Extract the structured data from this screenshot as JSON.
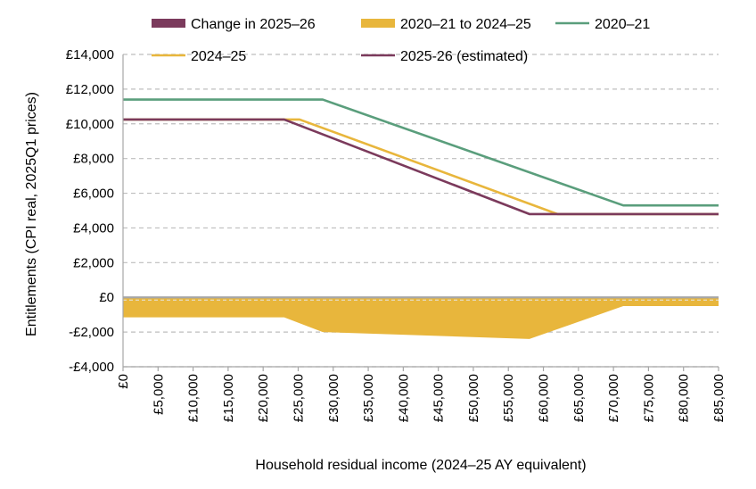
{
  "chart_data": {
    "type": "line",
    "title": "",
    "xlabel": "Household residual income (2024–25 AY equivalent)",
    "ylabel": "Entitlements (CPI real, 2025Q1 prices)",
    "xlim": [
      0,
      85000
    ],
    "ylim": [
      -4000,
      14000
    ],
    "x_ticks": [
      0,
      5000,
      10000,
      15000,
      20000,
      25000,
      30000,
      35000,
      40000,
      45000,
      50000,
      55000,
      60000,
      65000,
      70000,
      75000,
      80000,
      85000
    ],
    "x_tick_labels": [
      "£0",
      "£5,000",
      "£10,000",
      "£15,000",
      "£20,000",
      "£25,000",
      "£30,000",
      "£35,000",
      "£40,000",
      "£45,000",
      "£50,000",
      "£55,000",
      "£60,000",
      "£65,000",
      "£70,000",
      "£75,000",
      "£80,000",
      "£85,000"
    ],
    "y_ticks": [
      14000,
      12000,
      10000,
      8000,
      6000,
      4000,
      2000,
      0,
      -2000,
      -4000
    ],
    "y_tick_labels": [
      "£14,000",
      "£12,000",
      "£10,000",
      "£8,000",
      "£6,000",
      "£4,000",
      "£2,000",
      "£0",
      "-£2,000",
      "-£4,000"
    ],
    "grid": "horizontal dashed",
    "legend_position": "top",
    "series": [
      {
        "name": "Change in 2025–26",
        "kind": "area",
        "color": "#7b3a5c",
        "points": [
          [
            0,
            0
          ],
          [
            23000,
            0
          ],
          [
            25200,
            -200
          ],
          [
            58000,
            -530
          ],
          [
            62000,
            0
          ],
          [
            85000,
            0
          ]
        ]
      },
      {
        "name": "2020–21 to 2024–25",
        "kind": "area",
        "color": "#e8b63c",
        "points": [
          [
            0,
            -1150
          ],
          [
            23000,
            -1150
          ],
          [
            28500,
            -2000
          ],
          [
            58000,
            -2400
          ],
          [
            71400,
            -500
          ],
          [
            85000,
            -500
          ]
        ]
      },
      {
        "name": "2020–21",
        "kind": "line",
        "color": "#5a9e7c",
        "points": [
          [
            0,
            11400
          ],
          [
            28500,
            11400
          ],
          [
            71400,
            5300
          ],
          [
            85000,
            5300
          ]
        ]
      },
      {
        "name": "2024–25",
        "kind": "line",
        "color": "#e8b63c",
        "points": [
          [
            0,
            10250
          ],
          [
            25200,
            10250
          ],
          [
            62000,
            4800
          ],
          [
            85000,
            4800
          ]
        ]
      },
      {
        "name": "2025-26 (estimated)",
        "kind": "line",
        "color": "#7b3a5c",
        "points": [
          [
            0,
            10250
          ],
          [
            23000,
            10250
          ],
          [
            58000,
            4800
          ],
          [
            85000,
            4800
          ]
        ]
      }
    ]
  }
}
